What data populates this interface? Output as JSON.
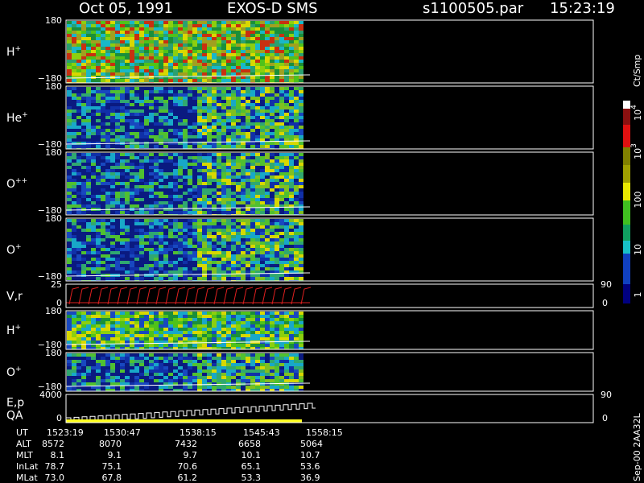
{
  "header": {
    "date": "Oct 05, 1991",
    "instrument": "EXOS-D SMS",
    "file": "s1100505.par",
    "time": "15:23:19"
  },
  "panels": [
    {
      "labels": [
        {
          "text": "H",
          "sup": "+"
        }
      ],
      "ticks_left": [
        "180",
        "−180"
      ]
    },
    {
      "labels": [
        {
          "text": "He",
          "sup": "+"
        }
      ],
      "ticks_left": [
        "180",
        "−180"
      ]
    },
    {
      "labels": [
        {
          "text": "O",
          "sup": "++"
        }
      ],
      "ticks_left": [
        "180",
        "−180"
      ]
    },
    {
      "labels": [
        {
          "text": "O",
          "sup": "+"
        }
      ],
      "ticks_left": [
        "180",
        "−180"
      ]
    },
    {
      "labels": [
        {
          "text": "V,r"
        }
      ],
      "ticks_left": [
        "25",
        "0"
      ],
      "ticks_right": [
        "90",
        "0"
      ]
    },
    {
      "labels": [
        {
          "text": "H",
          "sup": "+"
        }
      ],
      "ticks_left": [
        "180",
        "−180"
      ]
    },
    {
      "labels": [
        {
          "text": "O",
          "sup": "+"
        }
      ],
      "ticks_left": [
        "180",
        "−180"
      ]
    },
    {
      "labels": [
        {
          "text": "E,p"
        },
        {
          "text": "QA"
        }
      ],
      "ticks_left": [
        "4000",
        "0"
      ],
      "ticks_right": [
        "90",
        "0"
      ]
    }
  ],
  "colorbar": {
    "unit": "Ct/Smp",
    "labels": [
      {
        "text": "10",
        "sup": "4"
      },
      {
        "text": "10",
        "sup": "3"
      },
      {
        "text": "100"
      },
      {
        "text": "10"
      },
      {
        "text": "1"
      }
    ]
  },
  "footer": {
    "rows": [
      {
        "label": "UT",
        "values": [
          "1523:19",
          "1530:47",
          "1538:15",
          "1545:43",
          "1558:15"
        ]
      },
      {
        "label": "ALT",
        "values": [
          "8572",
          "8070",
          "7432",
          "6658",
          "5064"
        ]
      },
      {
        "label": "MLT",
        "values": [
          "8.1",
          "9.1",
          "9.7",
          "10.1",
          "10.7"
        ]
      },
      {
        "label": "InLat",
        "values": [
          "78.7",
          "75.1",
          "70.6",
          "65.1",
          "53.6"
        ]
      },
      {
        "label": "MLat",
        "values": [
          "73.0",
          "67.8",
          "61.2",
          "53.3",
          "36.9"
        ]
      }
    ]
  },
  "side_note": "Sep-00 2AA32L"
}
